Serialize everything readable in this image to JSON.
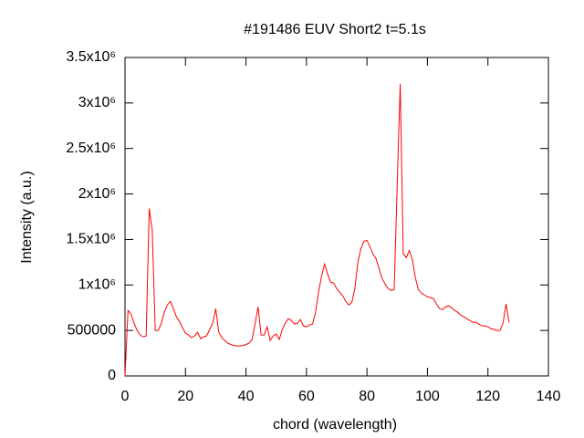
{
  "chart_data": {
    "type": "line",
    "title": "#191486 EUV Short2 t=5.1s",
    "x_label": "chord (wavelength)",
    "y_label": "Intensity (a.u.)",
    "x": [
      0,
      1,
      2,
      3,
      4,
      5,
      6,
      7,
      8,
      9,
      10,
      11,
      12,
      13,
      14,
      15,
      16,
      17,
      18,
      19,
      20,
      21,
      22,
      23,
      24,
      25,
      26,
      27,
      28,
      29,
      30,
      31,
      32,
      33,
      34,
      35,
      36,
      37,
      38,
      39,
      40,
      41,
      42,
      43,
      44,
      45,
      46,
      47,
      48,
      49,
      50,
      51,
      52,
      53,
      54,
      55,
      56,
      57,
      58,
      59,
      60,
      61,
      62,
      63,
      64,
      65,
      66,
      67,
      68,
      69,
      70,
      71,
      72,
      73,
      74,
      75,
      76,
      77,
      78,
      79,
      80,
      81,
      82,
      83,
      84,
      85,
      86,
      87,
      88,
      89,
      90,
      91,
      92,
      93,
      94,
      95,
      96,
      97,
      98,
      99,
      100,
      101,
      102,
      103,
      104,
      105,
      106,
      107,
      108,
      109,
      110,
      111,
      112,
      113,
      114,
      115,
      116,
      117,
      118,
      119,
      120,
      121,
      122,
      123,
      124,
      125,
      126,
      127
    ],
    "series": [
      {
        "color": "#ff0000",
        "values": [
          0,
          720000,
          680000,
          580000,
          500000,
          450000,
          430000,
          440000,
          1840000,
          1600000,
          500000,
          500000,
          580000,
          700000,
          780000,
          820000,
          740000,
          650000,
          600000,
          530000,
          470000,
          450000,
          420000,
          440000,
          480000,
          410000,
          430000,
          440000,
          510000,
          580000,
          740000,
          480000,
          420000,
          390000,
          360000,
          345000,
          335000,
          330000,
          330000,
          335000,
          345000,
          360000,
          400000,
          570000,
          760000,
          450000,
          450000,
          540000,
          390000,
          440000,
          460000,
          400000,
          510000,
          580000,
          630000,
          610000,
          570000,
          580000,
          620000,
          550000,
          540000,
          560000,
          570000,
          700000,
          920000,
          1100000,
          1230000,
          1120000,
          1030000,
          1020000,
          960000,
          920000,
          880000,
          820000,
          780000,
          810000,
          960000,
          1250000,
          1400000,
          1480000,
          1490000,
          1420000,
          1340000,
          1290000,
          1180000,
          1070000,
          1010000,
          960000,
          940000,
          950000,
          2100000,
          3210000,
          1340000,
          1300000,
          1380000,
          1280000,
          1080000,
          950000,
          910000,
          890000,
          870000,
          860000,
          850000,
          790000,
          740000,
          730000,
          760000,
          770000,
          750000,
          720000,
          700000,
          670000,
          650000,
          630000,
          610000,
          590000,
          590000,
          570000,
          550000,
          550000,
          540000,
          520000,
          510000,
          500000,
          500000,
          580000,
          790000,
          590000
        ]
      }
    ],
    "xlim": [
      0,
      140
    ],
    "xticks": [
      0,
      20,
      40,
      60,
      80,
      100,
      120,
      140
    ],
    "ylim": [
      0,
      3500000
    ],
    "yticks": [
      0,
      500000,
      {
        "value": 1000000,
        "label": "1x10⁶"
      },
      {
        "value": 1500000,
        "label": "1.5x10⁶"
      },
      {
        "value": 2000000,
        "label": "2x10⁶"
      },
      {
        "value": 2500000,
        "label": "2.5x10⁶"
      },
      {
        "value": 3000000,
        "label": "3x10⁶"
      },
      {
        "value": 3500000,
        "label": "3.5x10⁶"
      }
    ]
  }
}
